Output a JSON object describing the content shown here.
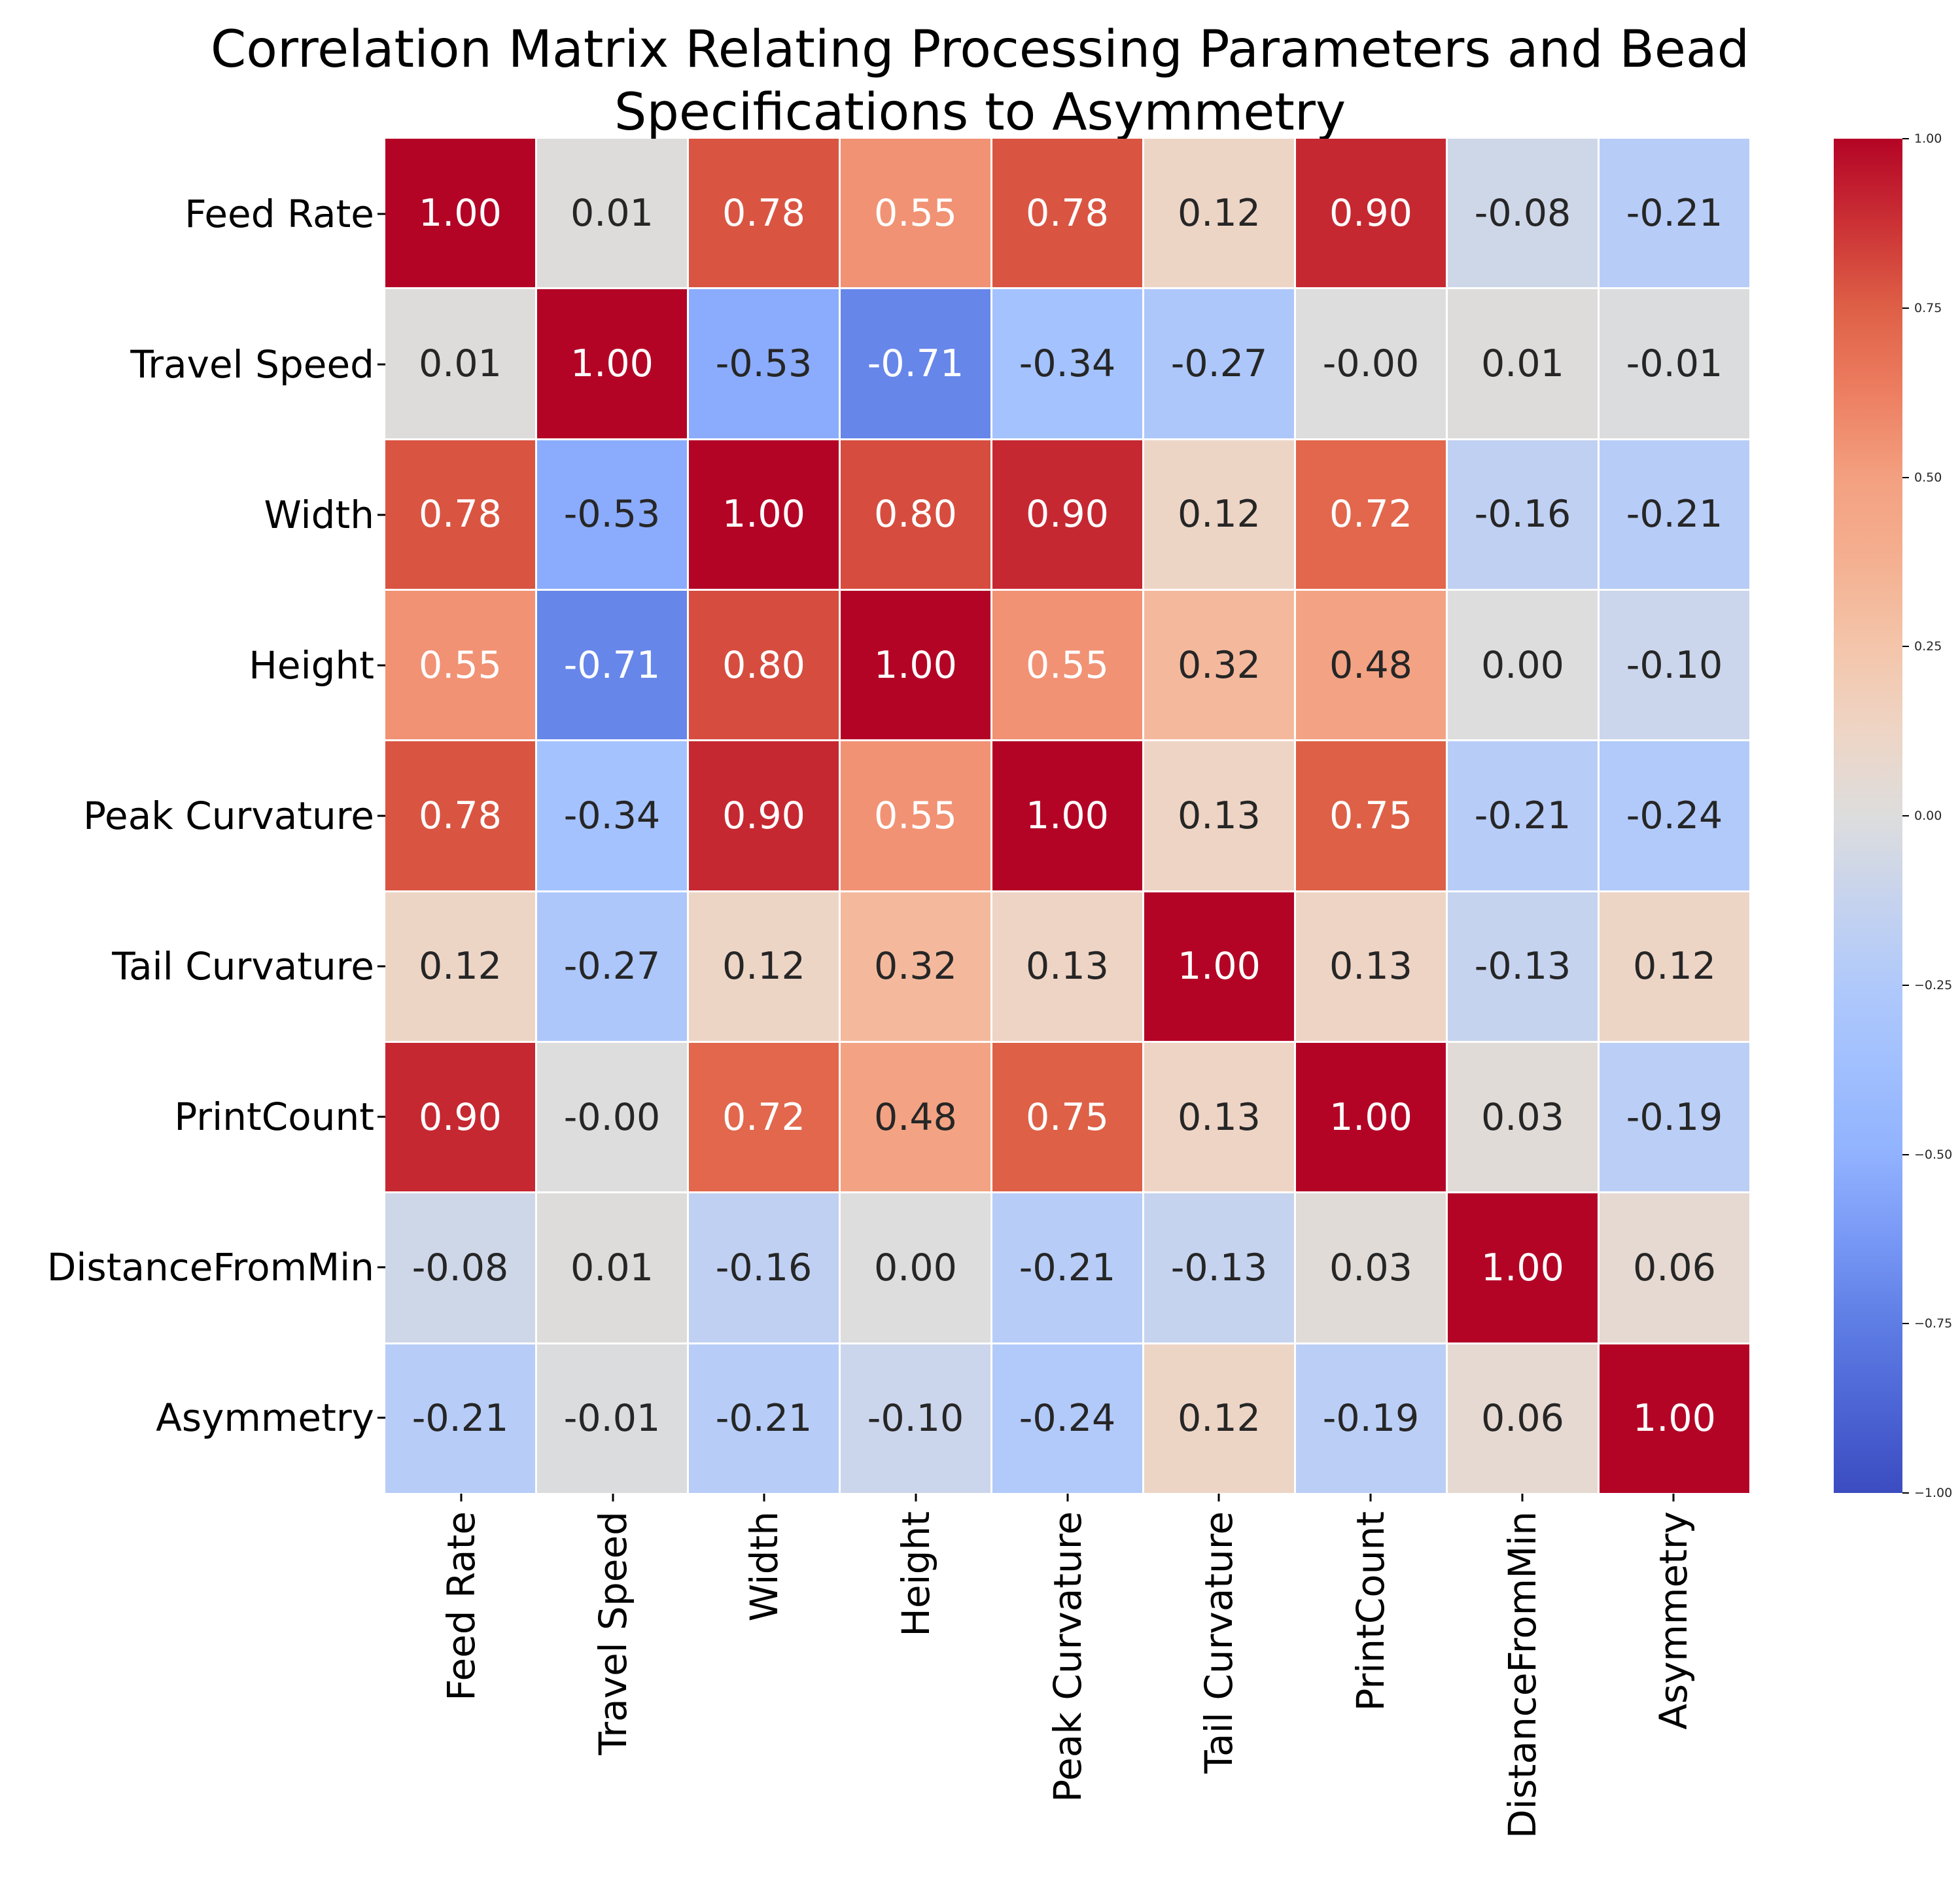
{
  "figure": {
    "title_line1": "Correlation Matrix Relating Processing Parameters and Bead",
    "title_line2": "Specifications to Asymmetry"
  },
  "chart_data": {
    "type": "heatmap",
    "title": "Correlation Matrix Relating Processing Parameters and Bead Specifications to Asymmetry",
    "x_labels": [
      "Feed Rate",
      "Travel Speed",
      "Width",
      "Height",
      "Peak Curvature",
      "Tail Curvature",
      "PrintCount",
      "DistanceFromMin",
      "Asymmetry"
    ],
    "y_labels": [
      "Feed Rate",
      "Travel Speed",
      "Width",
      "Height",
      "Peak Curvature",
      "Tail Curvature",
      "PrintCount",
      "DistanceFromMin",
      "Asymmetry"
    ],
    "matrix_values": [
      [
        "1.00",
        "0.01",
        "0.78",
        "0.55",
        "0.78",
        "0.12",
        "0.90",
        "-0.08",
        "-0.21"
      ],
      [
        "0.01",
        "1.00",
        "-0.53",
        "-0.71",
        "-0.34",
        "-0.27",
        "-0.00",
        "0.01",
        "-0.01"
      ],
      [
        "0.78",
        "-0.53",
        "1.00",
        "0.80",
        "0.90",
        "0.12",
        "0.72",
        "-0.16",
        "-0.21"
      ],
      [
        "0.55",
        "-0.71",
        "0.80",
        "1.00",
        "0.55",
        "0.32",
        "0.48",
        "0.00",
        "-0.10"
      ],
      [
        "0.78",
        "-0.34",
        "0.90",
        "0.55",
        "1.00",
        "0.13",
        "0.75",
        "-0.21",
        "-0.24"
      ],
      [
        "0.12",
        "-0.27",
        "0.12",
        "0.32",
        "0.13",
        "1.00",
        "0.13",
        "-0.13",
        "0.12"
      ],
      [
        "0.90",
        "-0.00",
        "0.72",
        "0.48",
        "0.75",
        "0.13",
        "1.00",
        "0.03",
        "-0.19"
      ],
      [
        "-0.08",
        "0.01",
        "-0.16",
        "0.00",
        "-0.21",
        "-0.13",
        "0.03",
        "1.00",
        "0.06"
      ],
      [
        "-0.21",
        "-0.01",
        "-0.21",
        "-0.10",
        "-0.24",
        "0.12",
        "-0.19",
        "0.06",
        "1.00"
      ]
    ],
    "value_range": [
      -1,
      1
    ],
    "legend_position": "right",
    "grid_line_color": "#ffffff",
    "annotation_dark_text_color": "#262626",
    "annotation_light_text_color": "#ffffff",
    "colorbar": {
      "tick_labels": [
        "1.00",
        "0.75",
        "0.50",
        "0.25",
        "0.00",
        "−0.25",
        "−0.50",
        "−0.75",
        "−1.00"
      ],
      "tick_values": [
        1.0,
        0.75,
        0.5,
        0.25,
        0.0,
        -0.25,
        -0.5,
        -0.75,
        -1.0
      ]
    },
    "colormap": {
      "name": "coolwarm",
      "anchors": [
        [
          0.0,
          "#3B4CC0"
        ],
        [
          0.0625,
          "#4C64D4"
        ],
        [
          0.125,
          "#5E7DE4"
        ],
        [
          0.1875,
          "#7898F6"
        ],
        [
          0.25,
          "#91B2FE"
        ],
        [
          0.3125,
          "#A0BFFE"
        ],
        [
          0.375,
          "#B0C9FB"
        ],
        [
          0.4375,
          "#C6D3EE"
        ],
        [
          0.5,
          "#DDDDDD"
        ],
        [
          0.5625,
          "#EED5C5"
        ],
        [
          0.625,
          "#F4C5AA"
        ],
        [
          0.6875,
          "#F4B091"
        ],
        [
          0.75,
          "#F3A080"
        ],
        [
          0.8125,
          "#ED7E61"
        ],
        [
          0.875,
          "#DE6046"
        ],
        [
          0.9375,
          "#CB3135"
        ],
        [
          1.0,
          "#B40426"
        ]
      ]
    }
  }
}
